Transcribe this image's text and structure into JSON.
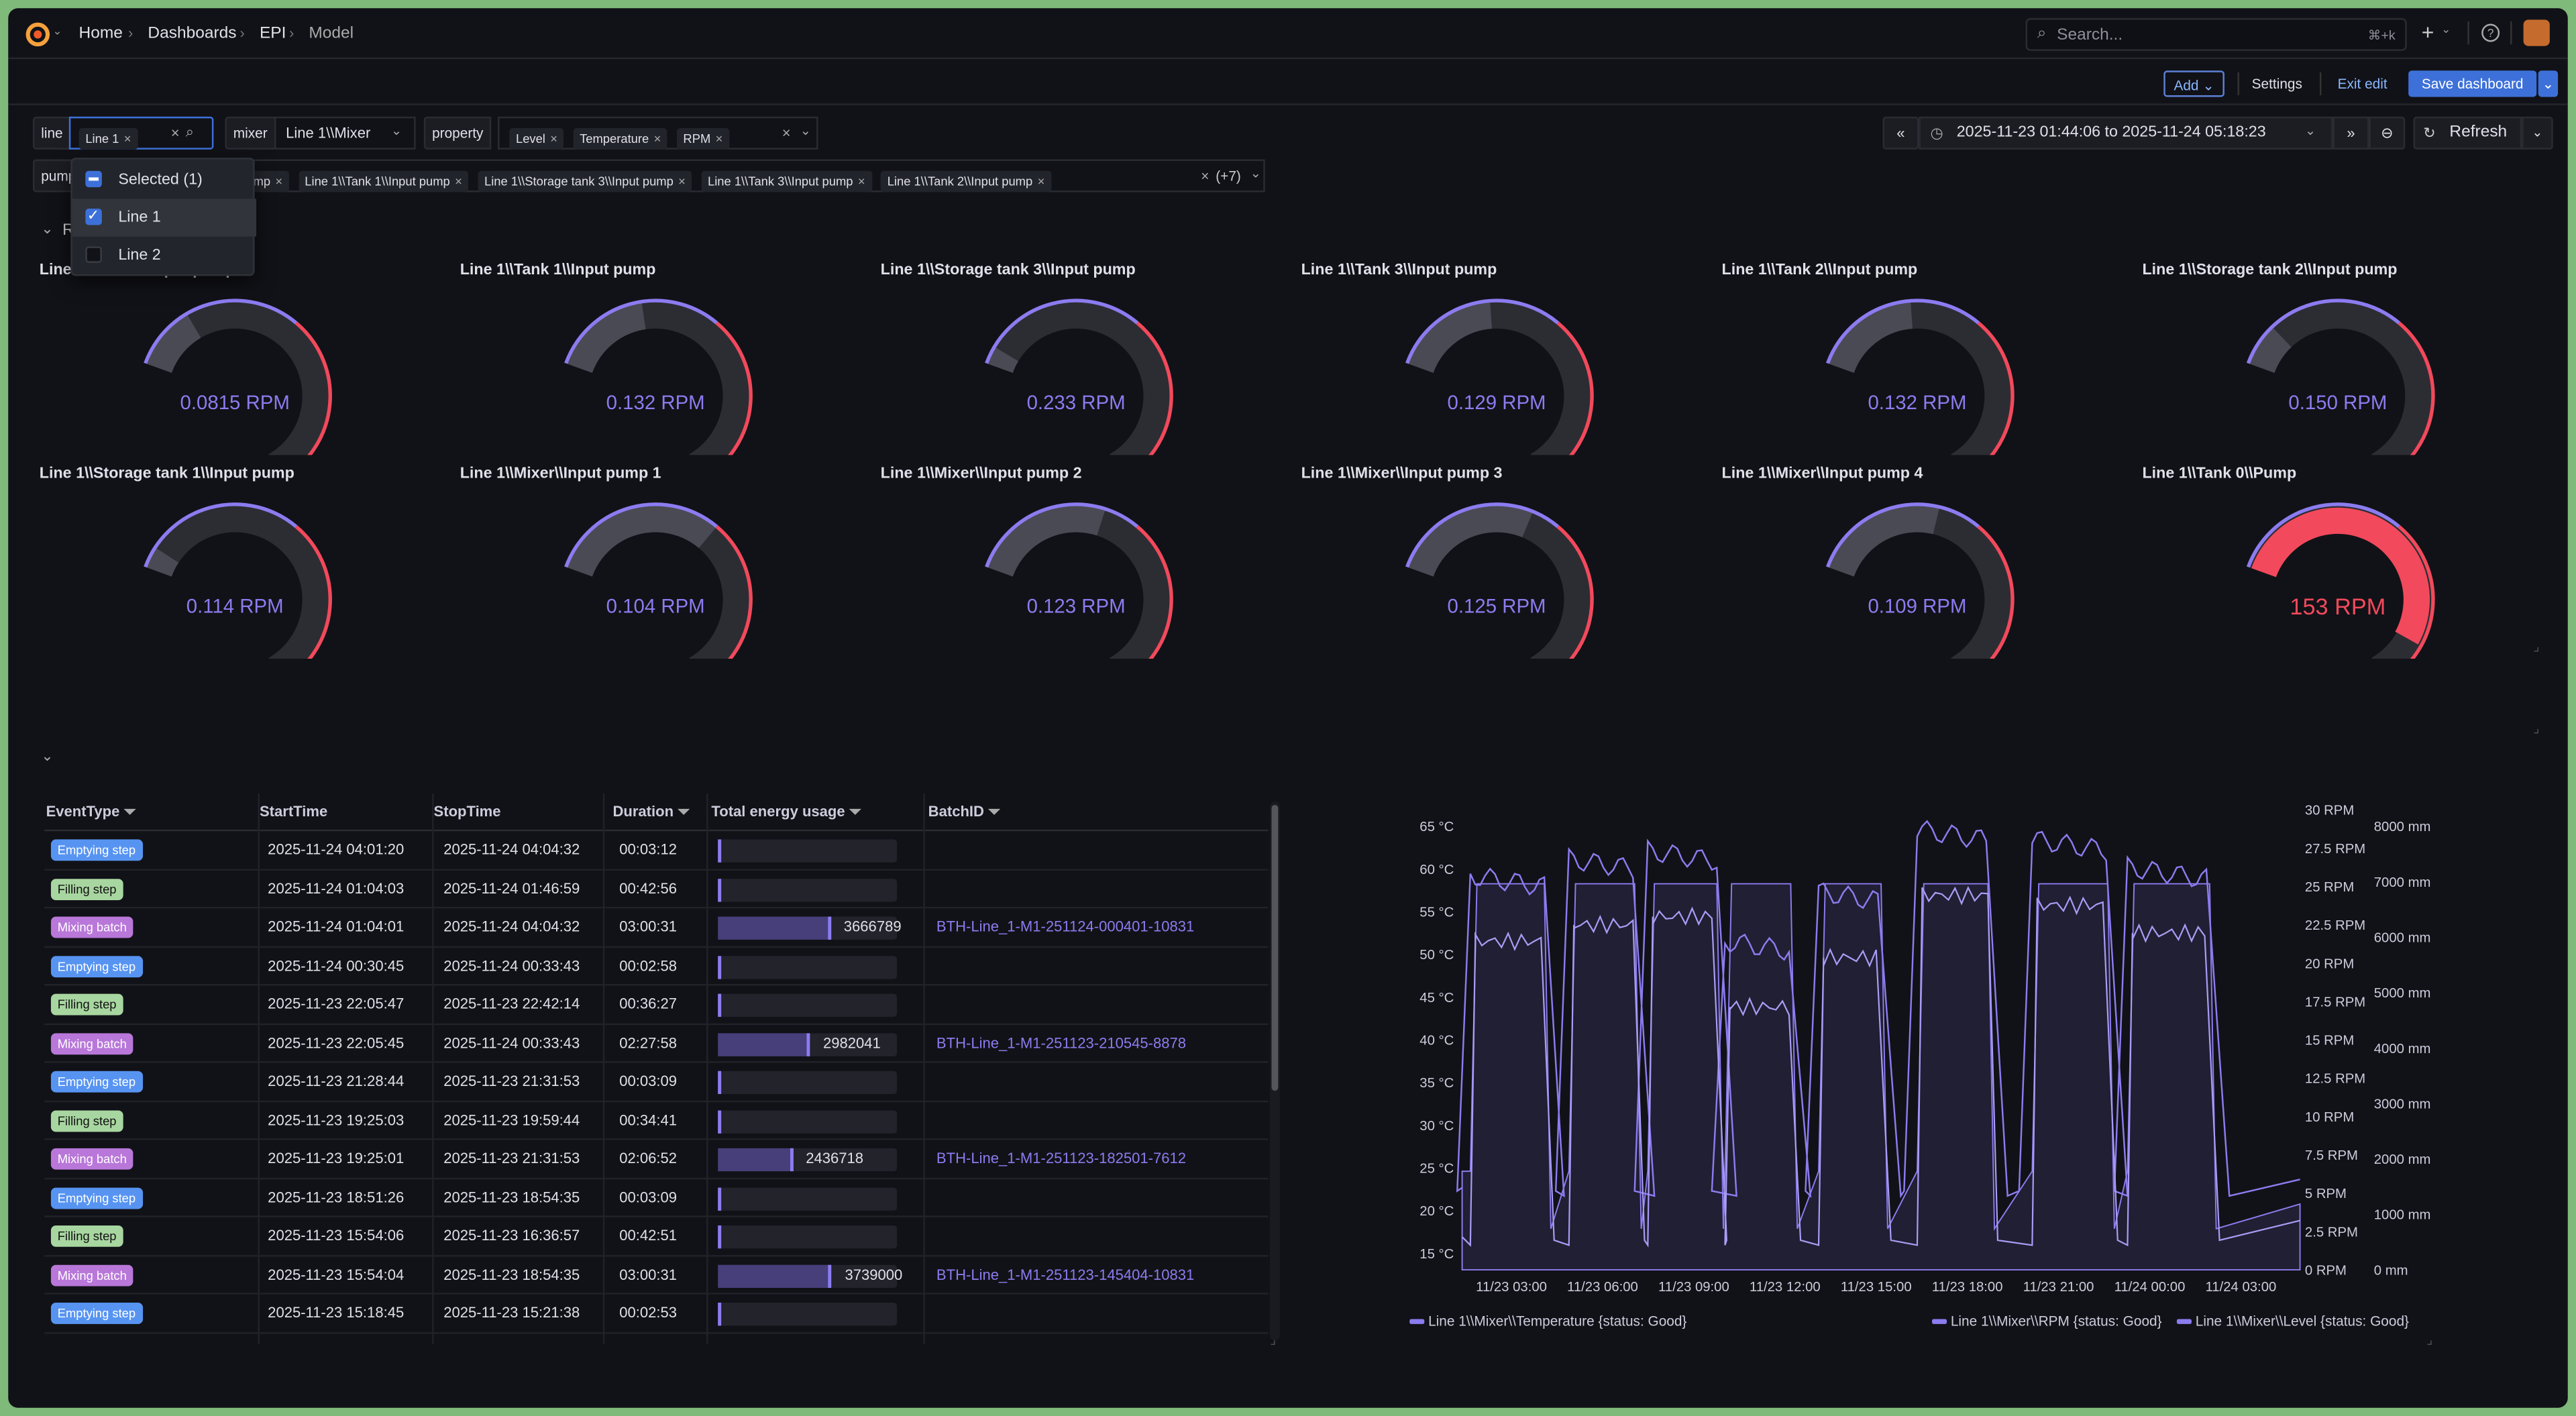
{
  "breadcrumb": {
    "home": "Home",
    "dashboards": "Dashboards",
    "folder": "EPI",
    "current": "Model"
  },
  "search": {
    "placeholder": "Search...",
    "shortcut": "⌘+k"
  },
  "actions": {
    "add": "Add",
    "settings": "Settings",
    "exit_edit": "Exit edit",
    "save": "Save dashboard"
  },
  "vars": {
    "line": {
      "label": "line",
      "chip": "Line 1"
    },
    "mixer": {
      "label": "mixer",
      "value": "Line 1\\\\Mixer"
    },
    "property": {
      "label": "property",
      "chips": [
        "Level",
        "Temperature",
        "RPM"
      ]
    },
    "pump": {
      "label": "pump",
      "chips": [
        "ump",
        "Line 1\\\\Tank 1\\\\Input pump",
        "Line 1\\\\Storage tank 3\\\\Input pump",
        "Line 1\\\\Tank 3\\\\Input pump",
        "Line 1\\\\Tank 2\\\\Input pump"
      ],
      "more": "(+7)"
    }
  },
  "dropdown": {
    "items": [
      {
        "label": "Selected (1)"
      },
      {
        "label": "Line 1"
      },
      {
        "label": "Line 2"
      }
    ]
  },
  "timerange": {
    "text": "2025-11-23 01:44:06 to 2025-11-24 05:18:23",
    "refresh": "Refresh"
  },
  "row1_title": "R",
  "gauges": [
    {
      "title": "Line 1\\\\Tank 4\\\\Input pump",
      "value": "0.0815 RPM"
    },
    {
      "title": "Line 1\\\\Tank 1\\\\Input pump",
      "value": "0.132 RPM"
    },
    {
      "title": "Line 1\\\\Storage tank 3\\\\Input pump",
      "value": "0.233 RPM"
    },
    {
      "title": "Line 1\\\\Tank 3\\\\Input pump",
      "value": "0.129 RPM"
    },
    {
      "title": "Line 1\\\\Tank 2\\\\Input pump",
      "value": "0.132 RPM"
    },
    {
      "title": "Line 1\\\\Storage tank 2\\\\Input pump",
      "value": "0.150 RPM"
    },
    {
      "title": "Line 1\\\\Storage tank 1\\\\Input pump",
      "value": "0.114 RPM"
    },
    {
      "title": "Line 1\\\\Mixer\\\\Input pump 1",
      "value": "0.104 RPM"
    },
    {
      "title": "Line 1\\\\Mixer\\\\Input pump 2",
      "value": "0.123 RPM"
    },
    {
      "title": "Line 1\\\\Mixer\\\\Input pump 3",
      "value": "0.125 RPM"
    },
    {
      "title": "Line 1\\\\Mixer\\\\Input pump 4",
      "value": "0.109 RPM"
    },
    {
      "title": "Line 1\\\\Tank 0\\\\Pump",
      "value": "153 RPM"
    }
  ],
  "table": {
    "headers": [
      "EventType",
      "StartTime",
      "StopTime",
      "Duration",
      "Total energy usage",
      "BatchID"
    ],
    "rows": [
      {
        "type": "Emptying step",
        "start": "2025-11-24 04:01:20",
        "stop": "2025-11-24 04:04:32",
        "dur": "00:03:12",
        "energy": "",
        "pct": 0,
        "batch": ""
      },
      {
        "type": "Filling step",
        "start": "2025-11-24 01:04:03",
        "stop": "2025-11-24 01:46:59",
        "dur": "00:42:56",
        "energy": "",
        "pct": 0,
        "batch": ""
      },
      {
        "type": "Mixing batch",
        "start": "2025-11-24 01:04:01",
        "stop": "2025-11-24 04:04:32",
        "dur": "03:00:31",
        "energy": "3666789",
        "pct": 0.98,
        "batch": "BTH-Line_1-M1-251124-000401-10831"
      },
      {
        "type": "Emptying step",
        "start": "2025-11-24 00:30:45",
        "stop": "2025-11-24 00:33:43",
        "dur": "00:02:58",
        "energy": "",
        "pct": 0,
        "batch": ""
      },
      {
        "type": "Filling step",
        "start": "2025-11-23 22:05:47",
        "stop": "2025-11-23 22:42:14",
        "dur": "00:36:27",
        "energy": "",
        "pct": 0,
        "batch": ""
      },
      {
        "type": "Mixing batch",
        "start": "2025-11-23 22:05:45",
        "stop": "2025-11-24 00:33:43",
        "dur": "02:27:58",
        "energy": "2982041",
        "pct": 0.8,
        "batch": "BTH-Line_1-M1-251123-210545-8878"
      },
      {
        "type": "Emptying step",
        "start": "2025-11-23 21:28:44",
        "stop": "2025-11-23 21:31:53",
        "dur": "00:03:09",
        "energy": "",
        "pct": 0,
        "batch": ""
      },
      {
        "type": "Filling step",
        "start": "2025-11-23 19:25:03",
        "stop": "2025-11-23 19:59:44",
        "dur": "00:34:41",
        "energy": "",
        "pct": 0,
        "batch": ""
      },
      {
        "type": "Mixing batch",
        "start": "2025-11-23 19:25:01",
        "stop": "2025-11-23 21:31:53",
        "dur": "02:06:52",
        "energy": "2436718",
        "pct": 0.65,
        "batch": "BTH-Line_1-M1-251123-182501-7612"
      },
      {
        "type": "Emptying step",
        "start": "2025-11-23 18:51:26",
        "stop": "2025-11-23 18:54:35",
        "dur": "00:03:09",
        "energy": "",
        "pct": 0,
        "batch": ""
      },
      {
        "type": "Filling step",
        "start": "2025-11-23 15:54:06",
        "stop": "2025-11-23 16:36:57",
        "dur": "00:42:51",
        "energy": "",
        "pct": 0,
        "batch": ""
      },
      {
        "type": "Mixing batch",
        "start": "2025-11-23 15:54:04",
        "stop": "2025-11-23 18:54:35",
        "dur": "03:00:31",
        "energy": "3739000",
        "pct": 0.99,
        "batch": "BTH-Line_1-M1-251123-145404-10831"
      },
      {
        "type": "Emptying step",
        "start": "2025-11-23 15:18:45",
        "stop": "2025-11-23 15:21:38",
        "dur": "00:02:53",
        "energy": "",
        "pct": 0,
        "batch": ""
      }
    ]
  },
  "colors": {
    "accent": "#8b7cf0",
    "threshold": "#f2495c",
    "emptying": "#5794f2",
    "filling": "#a8d6a0",
    "mixing": "#b877d9"
  },
  "chart_data": {
    "type": "line",
    "x_ticks": [
      "11/23 03:00",
      "11/23 06:00",
      "11/23 09:00",
      "11/23 12:00",
      "11/23 15:00",
      "11/23 18:00",
      "11/23 21:00",
      "11/24 00:00",
      "11/24 03:00"
    ],
    "y_left_ticks": [
      "65 °C",
      "60 °C",
      "55 °C",
      "50 °C",
      "45 °C",
      "40 °C",
      "35 °C",
      "30 °C",
      "25 °C",
      "20 °C",
      "15 °C"
    ],
    "y_rpm_ticks": [
      "30 RPM",
      "27.5 RPM",
      "25 RPM",
      "22.5 RPM",
      "20 RPM",
      "17.5 RPM",
      "15 RPM",
      "12.5 RPM",
      "10 RPM",
      "7.5 RPM",
      "5 RPM",
      "2.5 RPM",
      "0 RPM"
    ],
    "y_mm_ticks": [
      "8000 mm",
      "7000 mm",
      "6000 mm",
      "5000 mm",
      "4000 mm",
      "3000 mm",
      "2000 mm",
      "1000 mm",
      "0 mm"
    ],
    "series": [
      {
        "name": "Line 1\\\\Mixer\\\\Temperature {status: Good}"
      },
      {
        "name": "Line 1\\\\Mixer\\\\RPM {status: Good}"
      },
      {
        "name": "Line 1\\\\Mixer\\\\Level {status: Good}"
      }
    ]
  }
}
